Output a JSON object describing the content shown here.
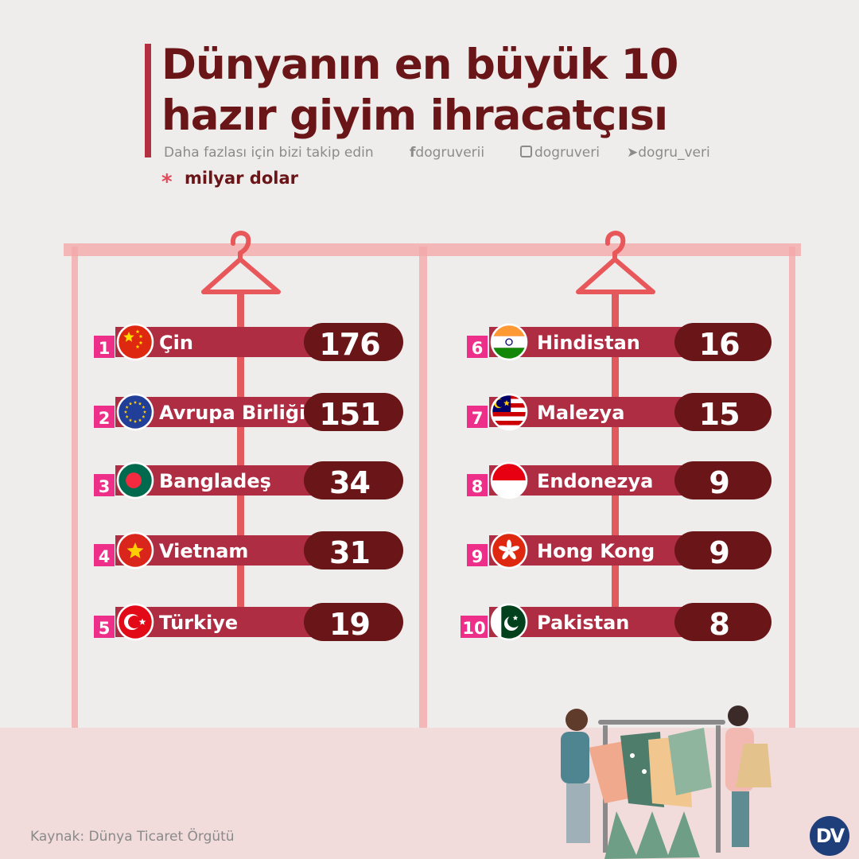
{
  "header": {
    "title_line1": "Dünyanın en büyük 10",
    "title_line2": "hazır giyim ihracatçısı",
    "follow_text": "Daha fazlası için bizi takip edin",
    "facebook": "dogruverii",
    "instagram": "dogruveri",
    "twitter": "dogru_veri",
    "unit_mark": "*",
    "unit": "milyar dolar"
  },
  "footer": {
    "source": "Kaynak: Dünya Ticaret Örgütü",
    "logo": "DV"
  },
  "colors": {
    "title": "#6a1517",
    "bar": "#ae2d43",
    "value_box": "#6a1517",
    "rank": "#ee2f8a",
    "rack": "#f2a3a3",
    "floor": "#f1dbdb"
  },
  "chart_data": {
    "type": "bar",
    "ranks": [
      "1",
      "2",
      "3",
      "4",
      "5",
      "6",
      "7",
      "8",
      "9",
      "10"
    ],
    "categories": [
      "Çin",
      "Avrupa Birliği",
      "Bangladeş",
      "Vietnam",
      "Türkiye",
      "Hindistan",
      "Malezya",
      "Endonezya",
      "Hong Kong",
      "Pakistan"
    ],
    "values": [
      176,
      151,
      34,
      31,
      19,
      16,
      15,
      9,
      9,
      8
    ],
    "value_labels": [
      "176",
      "151",
      "34",
      "31",
      "19",
      "16",
      "15",
      "9",
      "9",
      "8"
    ],
    "flags": [
      "china-flag",
      "eu-flag",
      "bangladesh-flag",
      "vietnam-flag",
      "turkey-flag",
      "india-flag",
      "malaysia-flag",
      "indonesia-flag",
      "hong-kong-flag",
      "pakistan-flag"
    ],
    "title": "Dünyanın en büyük 10 hazır giyim ihracatçısı",
    "unit": "milyar dolar",
    "legend": "none"
  }
}
